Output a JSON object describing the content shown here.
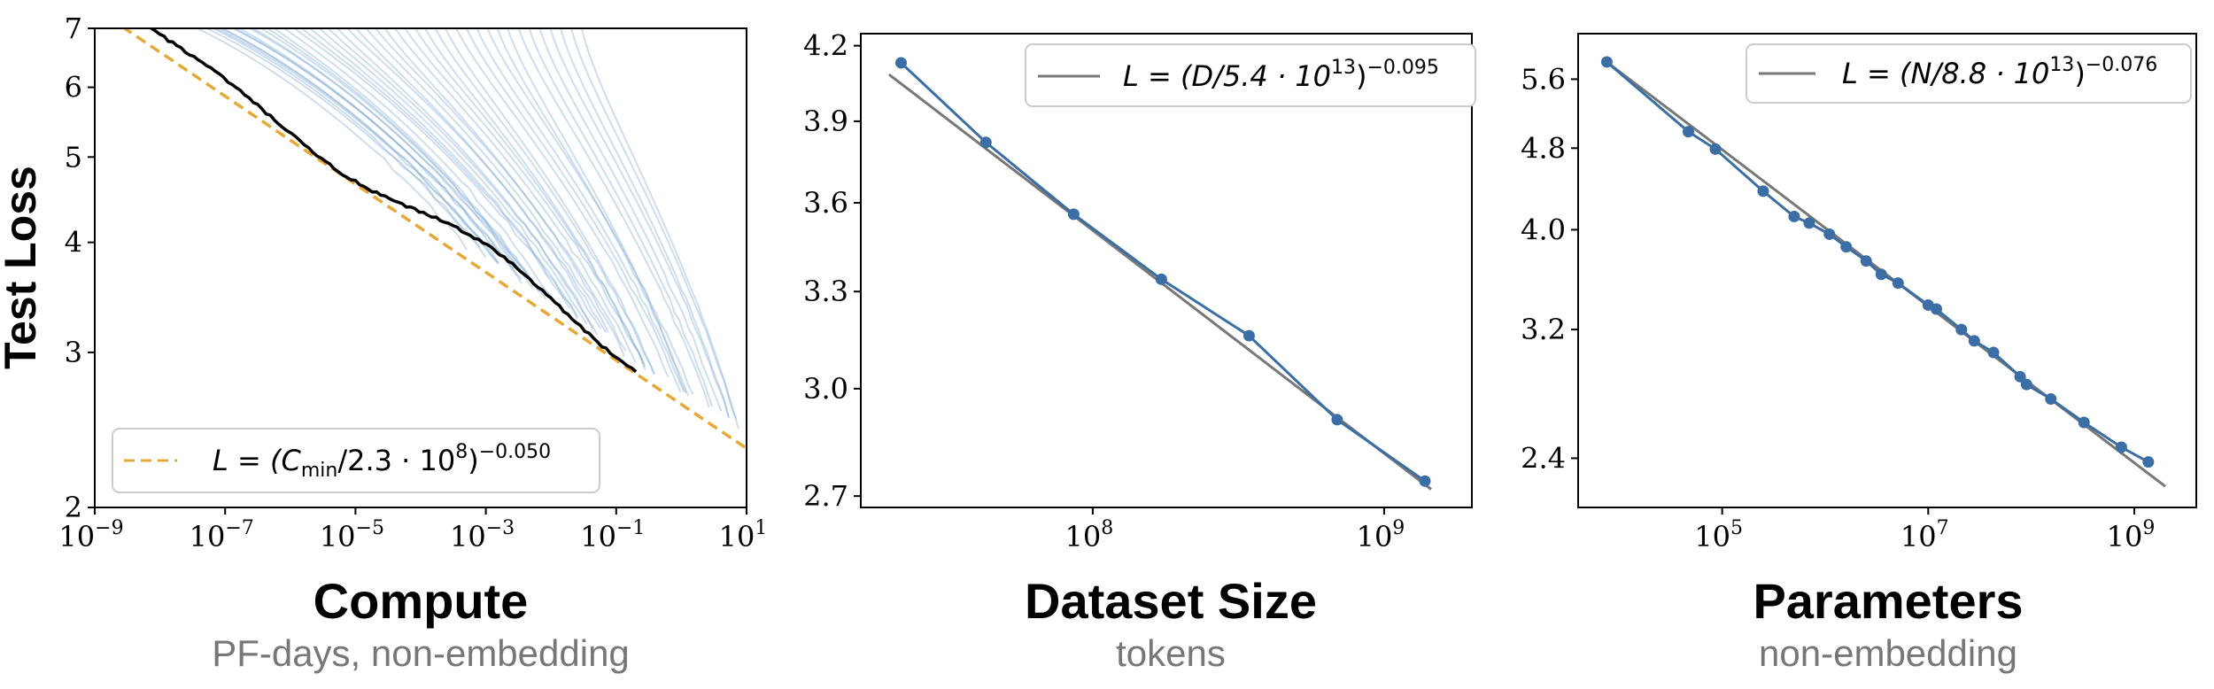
{
  "colors": {
    "point_blue": "#3a6ea5",
    "fit_gray": "#777777",
    "dashed_orange": "#e8a838",
    "curve_light_blue": "#6fa0cf",
    "frontier_black": "#000000"
  },
  "chart_data": [
    {
      "type": "line",
      "title": "",
      "xlabel": "Compute",
      "xsublabel": "PF-days, non-embedding",
      "ylabel": "Test Loss",
      "xscale": "log",
      "yscale": "log",
      "xlim": [
        1e-09,
        10
      ],
      "ylim": [
        2,
        7
      ],
      "xticks": [
        {
          "mantissa": "10",
          "exp": "−9",
          "value": 1e-09
        },
        {
          "mantissa": "10",
          "exp": "−7",
          "value": 1e-07
        },
        {
          "mantissa": "10",
          "exp": "−5",
          "value": 1e-05
        },
        {
          "mantissa": "10",
          "exp": "−3",
          "value": 0.001
        },
        {
          "mantissa": "10",
          "exp": "−1",
          "value": 0.1
        },
        {
          "mantissa": "10",
          "exp": "1",
          "value": 10
        }
      ],
      "yticks": [
        {
          "label": "2",
          "value": 2
        },
        {
          "label": "3",
          "value": 3
        },
        {
          "label": "4",
          "value": 4
        },
        {
          "label": "5",
          "value": 5
        },
        {
          "label": "6",
          "value": 6
        },
        {
          "label": "7",
          "value": 7
        }
      ],
      "fit": {
        "constant": 230000000.0,
        "exponent": 0.05,
        "style": "dashed"
      },
      "frontier": {
        "start_compute": 3e-09,
        "end_compute": 0.2
      },
      "training_curve_count": 45,
      "legend": {
        "position": "lower-left",
        "prefix": "L = (C",
        "subscript": "min",
        "middle": "/2.3 · 10",
        "middle_sup": "8",
        "suffix": ")",
        "exponent": "−0.050"
      }
    },
    {
      "type": "line",
      "title": "",
      "xlabel": "Dataset Size",
      "xsublabel": "tokens",
      "ylabel": "",
      "xscale": "log",
      "yscale": "log",
      "xlim": [
        16000000.0,
        2000000000.0
      ],
      "ylim": [
        2.67,
        4.25
      ],
      "xticks": [
        {
          "mantissa": "10",
          "exp": "8",
          "value": 100000000.0
        },
        {
          "mantissa": "10",
          "exp": "9",
          "value": 1000000000.0
        }
      ],
      "yticks": [
        {
          "label": "2.7",
          "value": 2.7
        },
        {
          "label": "3.0",
          "value": 3.0
        },
        {
          "label": "3.3",
          "value": 3.3
        },
        {
          "label": "3.6",
          "value": 3.6
        },
        {
          "label": "3.9",
          "value": 3.9
        },
        {
          "label": "4.2",
          "value": 4.2
        }
      ],
      "points": {
        "x": [
          22000000.0,
          43000000.0,
          86000000.0,
          172000000.0,
          344000000.0,
          690000000.0,
          1380000000.0
        ],
        "y": [
          4.13,
          3.82,
          3.56,
          3.34,
          3.16,
          2.91,
          2.74
        ]
      },
      "fit": {
        "constant": 54000000000000.0,
        "exponent": 0.095,
        "x_range": [
          20000000.0,
          1450000000.0
        ]
      },
      "legend": {
        "position": "top-right",
        "prefix": "L = (D/5.4 · 10",
        "middle_sup": "13",
        "suffix": ")",
        "exponent": "−0.095"
      }
    },
    {
      "type": "line",
      "title": "",
      "xlabel": "Parameters",
      "xsublabel": "non-embedding",
      "ylabel": "",
      "xscale": "log",
      "yscale": "log",
      "xlim": [
        4000,
        4000000000.0
      ],
      "ylim": [
        2.15,
        6.2
      ],
      "xticks": [
        {
          "mantissa": "10",
          "exp": "5",
          "value": 100000.0
        },
        {
          "mantissa": "10",
          "exp": "7",
          "value": 10000000.0
        },
        {
          "mantissa": "10",
          "exp": "9",
          "value": 1000000000.0
        }
      ],
      "yticks": [
        {
          "label": "2.4",
          "value": 2.4
        },
        {
          "label": "3.2",
          "value": 3.2
        },
        {
          "label": "4.0",
          "value": 4.0
        },
        {
          "label": "4.8",
          "value": 4.8
        },
        {
          "label": "5.6",
          "value": 5.6
        }
      ],
      "points": {
        "x": [
          7600,
          47000,
          86000,
          250000.0,
          500000.0,
          700000.0,
          1100000.0,
          1600000.0,
          2500000.0,
          3500000.0,
          5100000.0,
          10000000.0,
          12000000.0,
          21000000.0,
          28000000.0,
          43000000.0,
          78000000.0,
          90000000.0,
          155000000.0,
          325000000.0,
          750000000.0,
          1370000000.0
        ],
        "y": [
          5.82,
          4.98,
          4.79,
          4.36,
          4.12,
          4.06,
          3.96,
          3.85,
          3.73,
          3.62,
          3.55,
          3.38,
          3.35,
          3.2,
          3.12,
          3.04,
          2.88,
          2.83,
          2.74,
          2.6,
          2.46,
          2.38
        ]
      },
      "fit": {
        "constant": 88000000000000.0,
        "exponent": 0.076,
        "x_range": [
          7600,
          2000000000.0
        ]
      },
      "legend": {
        "position": "top-right",
        "prefix": "L = (N/8.8 · 10",
        "middle_sup": "13",
        "suffix": ")",
        "exponent": "−0.076"
      }
    }
  ]
}
